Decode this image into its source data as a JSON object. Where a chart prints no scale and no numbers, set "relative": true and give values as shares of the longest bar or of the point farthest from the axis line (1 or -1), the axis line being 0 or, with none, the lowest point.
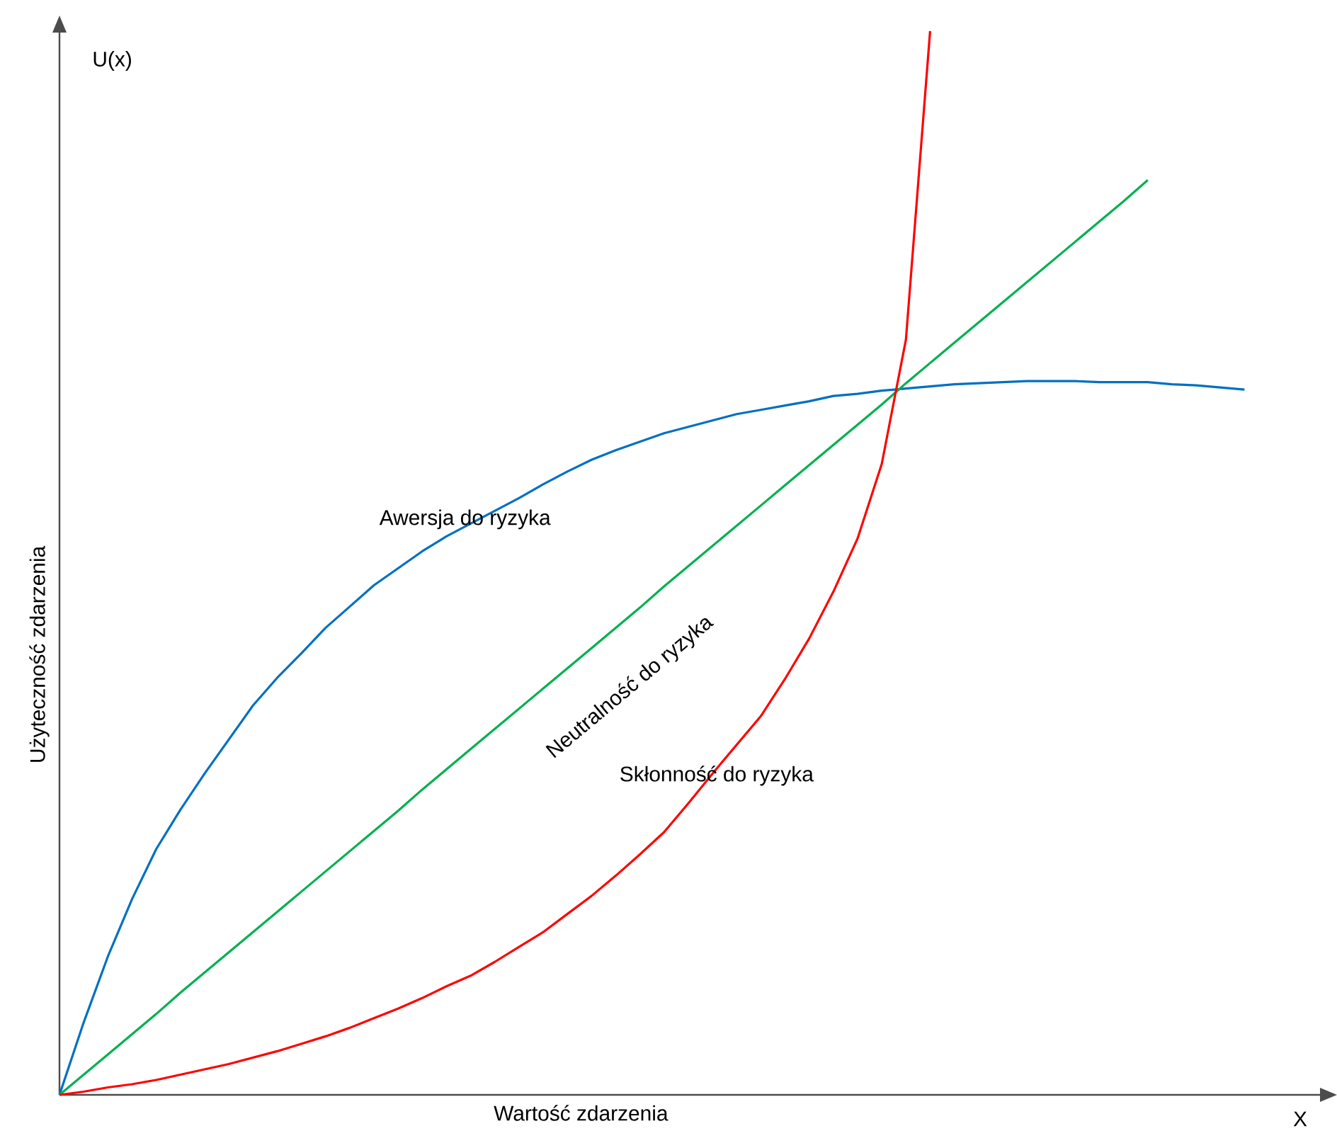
{
  "chart_data": {
    "type": "line",
    "relative": true,
    "xlabel": "Wartość zdarzenia",
    "ylabel": "Użyteczność zdarzenia",
    "annotations": [
      "U(x)",
      "X"
    ],
    "categories": [
      null,
      null,
      null,
      null,
      null,
      null,
      null,
      null,
      null,
      null,
      null,
      null,
      null,
      null,
      null,
      null,
      null,
      null,
      null,
      null,
      null,
      null,
      null,
      null,
      null,
      null,
      null,
      null,
      null,
      null,
      null,
      null,
      null,
      null,
      null,
      null,
      null,
      null,
      null,
      null,
      null,
      null,
      null,
      null,
      null,
      null,
      null,
      null,
      null,
      null
    ],
    "series": [
      {
        "name": "Awersja do ryzyka",
        "color": "#0070c0",
        "values": [
          0,
          0.068,
          0.13,
          0.184,
          0.231,
          0.268,
          0.302,
          0.334,
          0.366,
          0.392,
          0.415,
          0.439,
          0.459,
          0.479,
          0.495,
          0.511,
          0.525,
          0.537,
          0.549,
          0.561,
          0.574,
          0.586,
          0.597,
          0.606,
          0.614,
          0.622,
          0.628,
          0.634,
          0.64,
          0.644,
          0.648,
          0.652,
          0.657,
          0.659,
          0.662,
          0.664,
          0.666,
          0.668,
          0.669,
          0.67,
          0.671,
          0.671,
          0.671,
          0.67,
          0.67,
          0.67,
          0.668,
          0.667,
          0.665,
          0.663
        ]
      },
      {
        "name": "Neutralność do ryzyka",
        "color": "#00b050",
        "values": [
          0,
          0.019,
          0.038,
          0.057,
          0.076,
          0.096,
          0.115,
          0.134,
          0.153,
          0.172,
          0.191,
          0.21,
          0.229,
          0.248,
          0.267,
          0.287,
          0.306,
          0.325,
          0.344,
          0.363,
          0.382,
          0.401,
          0.42,
          0.439,
          0.458,
          0.478,
          0.497,
          0.516,
          0.535,
          0.554,
          0.573,
          0.592,
          0.611,
          0.63,
          0.649,
          0.669,
          0.688,
          0.707,
          0.726,
          0.745,
          0.764,
          0.783,
          0.802,
          0.821,
          0.84,
          0.86,
          null,
          null,
          null,
          null
        ]
      },
      {
        "name": "Skłonność do ryzyka",
        "color": "#ff0000",
        "values": [
          0,
          0.003,
          0.007,
          0.01,
          0.014,
          0.019,
          0.024,
          0.029,
          0.035,
          0.041,
          0.048,
          0.055,
          0.063,
          0.072,
          0.081,
          0.091,
          0.102,
          0.112,
          0.125,
          0.139,
          0.153,
          0.17,
          0.187,
          0.206,
          0.226,
          0.247,
          0.274,
          0.302,
          0.329,
          0.356,
          0.391,
          0.429,
          0.473,
          0.523,
          0.593,
          0.71,
          1,
          null,
          null,
          null,
          null,
          null,
          null,
          null,
          null,
          null,
          null,
          null,
          null,
          null
        ]
      }
    ]
  }
}
